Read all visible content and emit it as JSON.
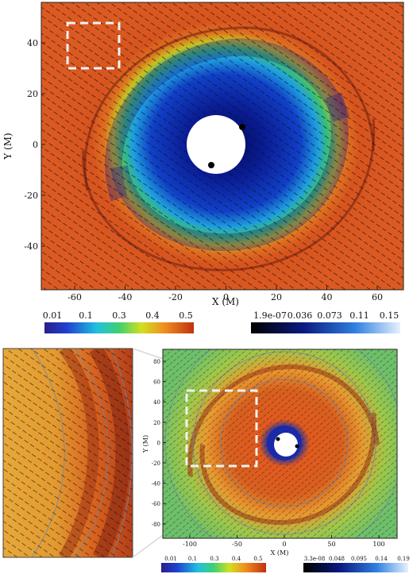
{
  "top_panel": {
    "x_axis": {
      "label": "X (M)",
      "ticks": [
        "-60",
        "-40",
        "-20",
        "0",
        "20",
        "40",
        "60"
      ]
    },
    "y_axis": {
      "label": "Y (M)",
      "ticks": [
        "40",
        "20",
        "0",
        "-20",
        "-40"
      ]
    }
  },
  "colorbar_density": {
    "ticks": [
      "0.01",
      "0.1",
      "0.3",
      "0.4",
      "0.5"
    ]
  },
  "colorbar_blue": {
    "ticks": [
      "1.9e-07",
      "0.036",
      "0.073",
      "0.11",
      "0.15"
    ]
  },
  "bottom_panel": {
    "x_axis": {
      "label": "X (M)",
      "ticks": [
        "-100",
        "-50",
        "0",
        "50",
        "100"
      ]
    },
    "y_axis": {
      "label": "Y (M)",
      "ticks": [
        "80",
        "60",
        "40",
        "20",
        "0",
        "-20",
        "-40",
        "-60",
        "-80"
      ]
    }
  },
  "colorbar_density_small": {
    "ticks": [
      "0.01",
      "0.1",
      "0.3",
      "0.4",
      "0.5"
    ]
  },
  "colorbar_blue_small": {
    "ticks": [
      "3.3e-08",
      "0.048",
      "0.095",
      "0.14",
      "0.19"
    ]
  },
  "colors": {
    "outer": "#d9511f",
    "mid": "#3fa548",
    "inner": "#0b1a8a",
    "zoom_box": "#f2f2f2"
  }
}
